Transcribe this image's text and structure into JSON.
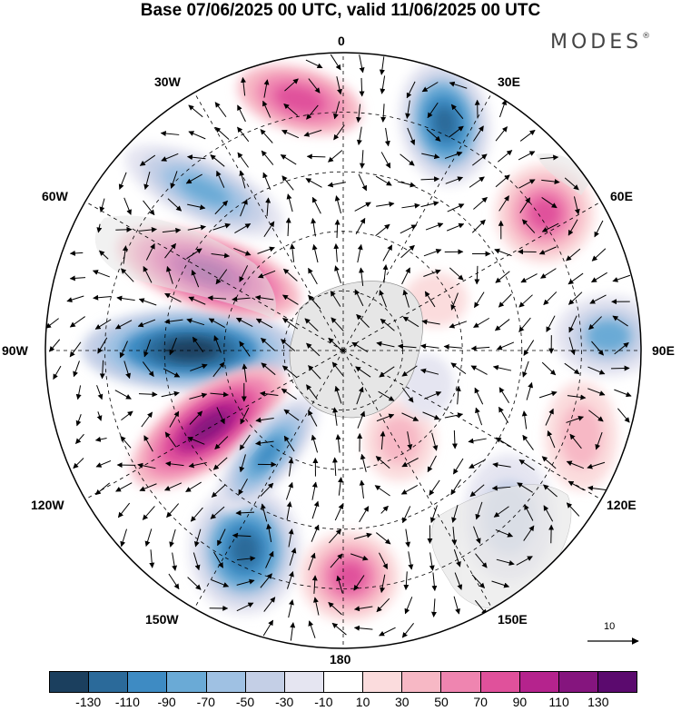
{
  "header": {
    "title": "Base 07/06/2025 00 UTC, valid 11/06/2025 00 UTC",
    "brand": "MODES",
    "brand_mark": "®"
  },
  "map": {
    "projection": "polar stereographic, south pole centered",
    "longitude_labels": {
      "lon_0": "0",
      "lon_30e": "30E",
      "lon_60e": "60E",
      "lon_90e": "90E",
      "lon_120e": "120E",
      "lon_150e": "150E",
      "lon_180": "180",
      "lon_150w": "150W",
      "lon_120w": "120W",
      "lon_90w": "90W",
      "lon_60w": "60W",
      "lon_30w": "30W"
    },
    "reference_vector_label": "10",
    "graticule_lines": "dashed",
    "land_color": "#e6e6e6"
  },
  "colorbar": {
    "colors": [
      "#1b3f5e",
      "#2b6a9a",
      "#3e8bc3",
      "#6aaad6",
      "#9fc1e3",
      "#c4cfe6",
      "#e5e5f1",
      "#ffffff",
      "#fbdcdd",
      "#f7b8c5",
      "#ef85b0",
      "#e0519b",
      "#b5238d",
      "#85157e",
      "#5b0a6e"
    ],
    "tick_labels": [
      "-130",
      "-110",
      "-90",
      "-70",
      "-50",
      "-30",
      "-10",
      "10",
      "30",
      "50",
      "70",
      "90",
      "110",
      "130"
    ]
  }
}
